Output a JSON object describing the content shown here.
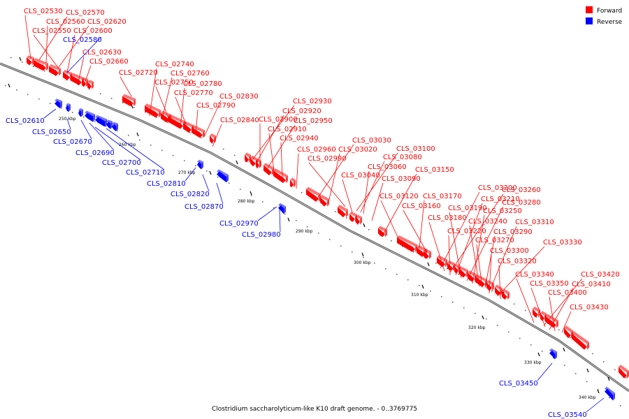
{
  "caption": "Clostridium saccharolyticum-like K10 draft genome. - 0..3769775",
  "legend": [
    {
      "label": "Forward",
      "color": "#ff0000"
    },
    {
      "label": "Reverse",
      "color": "#0000ff"
    }
  ],
  "colors": {
    "forward": "#ff0000",
    "reverse": "#0000ff",
    "backbone": "#808080"
  },
  "scale_labels": [
    "250 kbp",
    "260 kbp",
    "270 kbp",
    "280 kbp",
    "290 kbp",
    "300 kbp",
    "310 kbp",
    "320 kbp",
    "330 kbp",
    "340 kbp"
  ],
  "forward_labels": [
    "CLS_02530",
    "CLS_02570",
    "CLS_02560",
    "CLS_02620",
    "CLS_02550",
    "CLS_02600",
    "CLS_02630",
    "CLS_02660",
    "CLS_02720",
    "CLS_02740",
    "CLS_02760",
    "CLS_02750",
    "CLS_02780",
    "CLS_02770",
    "CLS_02830",
    "CLS_02790",
    "CLS_02840",
    "CLS_02930",
    "CLS_02920",
    "CLS_02900",
    "CLS_02950",
    "CLS_02910",
    "CLS_02940",
    "CLS_03030",
    "CLS_02960",
    "CLS_03020",
    "CLS_02990",
    "CLS_03100",
    "CLS_03080",
    "CLS_03060",
    "CLS_03040",
    "CLS_03150",
    "CLS_03090",
    "CLS_03120",
    "CLS_03170",
    "CLS_03160",
    "CLS_03200",
    "CLS_03260",
    "CLS_03210",
    "CLS_03190",
    "CLS_03280",
    "CLS_03180",
    "CLS_03250",
    "CLS_03240",
    "CLS_03310",
    "CLS_03220",
    "CLS_03290",
    "CLS_03270",
    "CLS_03330",
    "CLS_03300",
    "CLS_03320",
    "CLS_03340",
    "CLS_03420",
    "CLS_03350",
    "CLS_03410",
    "CLS_03400",
    "CLS_03430"
  ],
  "reverse_labels": [
    "CLS_02580",
    "CLS_02610",
    "CLS_02650",
    "CLS_02670",
    "CLS_02690",
    "CLS_02700",
    "CLS_02710",
    "CLS_02810",
    "CLS_02820",
    "CLS_02870",
    "CLS_02970",
    "CLS_02980",
    "CLS_03450",
    "CLS_03540"
  ]
}
